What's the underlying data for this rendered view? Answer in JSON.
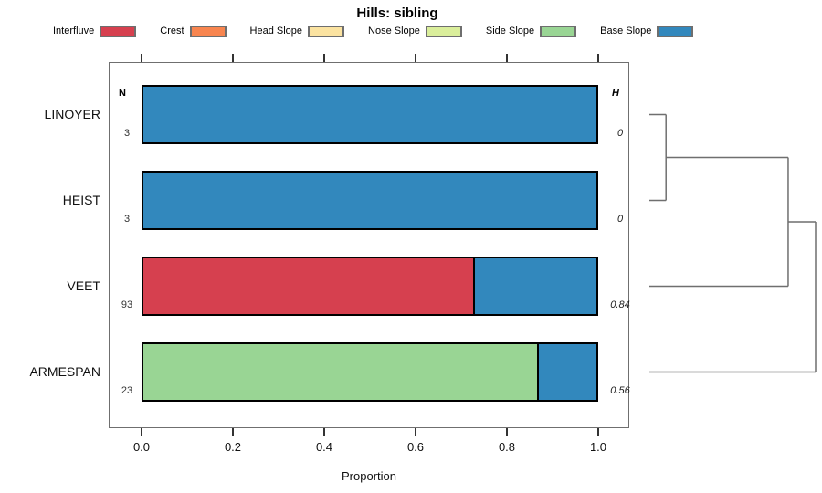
{
  "chart_data": {
    "type": "bar",
    "orientation": "horizontal",
    "stacked": true,
    "title": "Hills: sibling",
    "xlabel": "Proportion",
    "xlim": [
      0,
      1
    ],
    "x_tick_values": [
      0.0,
      0.2,
      0.4,
      0.6,
      0.8,
      1.0
    ],
    "x_tick_labels": [
      "0.0",
      "0.2",
      "0.4",
      "0.6",
      "0.8",
      "1.0"
    ],
    "legend_position": "top",
    "n_column_header": "N",
    "h_column_header": "H",
    "categories": [
      {
        "label": "Interfluve",
        "color": "#d6404f"
      },
      {
        "label": "Crest",
        "color": "#f8854f"
      },
      {
        "label": "Head Slope",
        "color": "#fbe3a1"
      },
      {
        "label": "Nose Slope",
        "color": "#daee9b"
      },
      {
        "label": "Side Slope",
        "color": "#99d594"
      },
      {
        "label": "Base Slope",
        "color": "#3288bd"
      }
    ],
    "rows": [
      {
        "label": "LINOYER",
        "n": "3",
        "h": "0",
        "segments": [
          {
            "category": "Base Slope",
            "value": 1.0
          }
        ]
      },
      {
        "label": "HEIST",
        "n": "3",
        "h": "0",
        "segments": [
          {
            "category": "Base Slope",
            "value": 1.0
          }
        ]
      },
      {
        "label": "VEET",
        "n": "93",
        "h": "0.84",
        "segments": [
          {
            "category": "Interfluve",
            "value": 0.73
          },
          {
            "category": "Base Slope",
            "value": 0.27
          }
        ]
      },
      {
        "label": "ARMESPAN",
        "n": "23",
        "h": "0.56",
        "segments": [
          {
            "category": "Side Slope",
            "value": 0.87
          },
          {
            "category": "Base Slope",
            "value": 0.13
          }
        ]
      }
    ],
    "dendrogram": {
      "merges": [
        {
          "children": [
            {
              "leaf": 0
            },
            {
              "leaf": 1
            }
          ],
          "height": 0.1
        },
        {
          "children": [
            {
              "merge": 0
            },
            {
              "leaf": 2
            }
          ],
          "height": 0.835
        },
        {
          "children": [
            {
              "merge": 1
            },
            {
              "leaf": 3
            }
          ],
          "height": 1.0
        }
      ],
      "line_color": "#6f6f6f"
    }
  }
}
